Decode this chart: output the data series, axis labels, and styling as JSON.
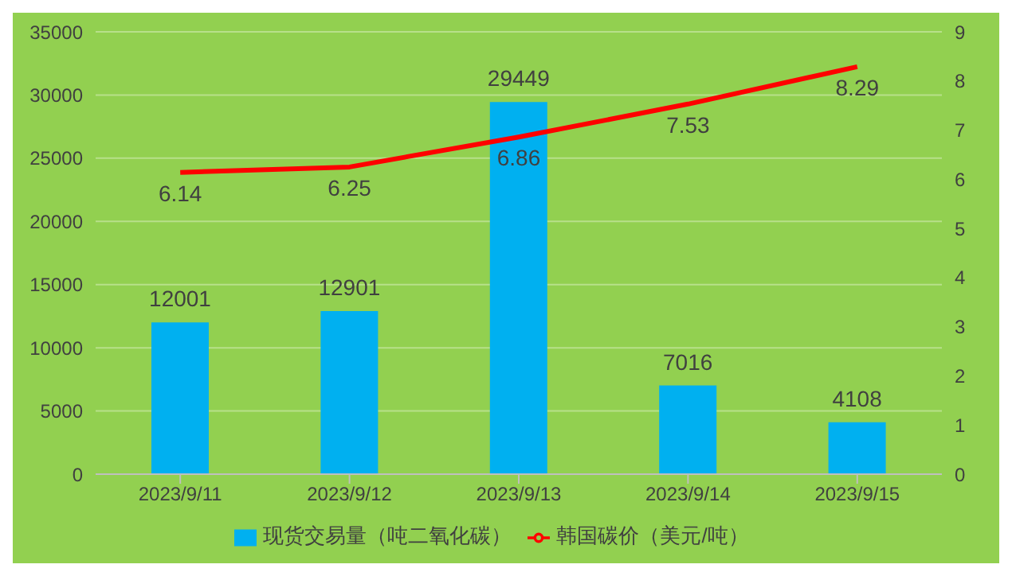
{
  "chart_data": {
    "type": "bar",
    "categories": [
      "2023/9/11",
      "2023/9/12",
      "2023/9/13",
      "2023/9/14",
      "2023/9/15"
    ],
    "series": [
      {
        "name": "现货交易量（吨二氧化碳）",
        "color": "#00b0f0",
        "values": [
          12001,
          12901,
          29449,
          7016,
          4108
        ]
      },
      {
        "name": "韩国碳价（美元/吨）",
        "type": "line",
        "axis": "y2",
        "color": "#ff0000",
        "values": [
          6.14,
          6.25,
          6.86,
          7.53,
          8.29
        ]
      }
    ],
    "ylim": [
      0,
      35000
    ],
    "yticks": [
      0,
      5000,
      10000,
      15000,
      20000,
      25000,
      30000,
      35000
    ],
    "y2lim": [
      0,
      9
    ],
    "y2ticks": [
      0,
      1,
      2,
      3,
      4,
      5,
      6,
      7,
      8,
      9
    ],
    "grid": "y",
    "legend": "bottom",
    "data_labels": true,
    "marker": "none"
  }
}
